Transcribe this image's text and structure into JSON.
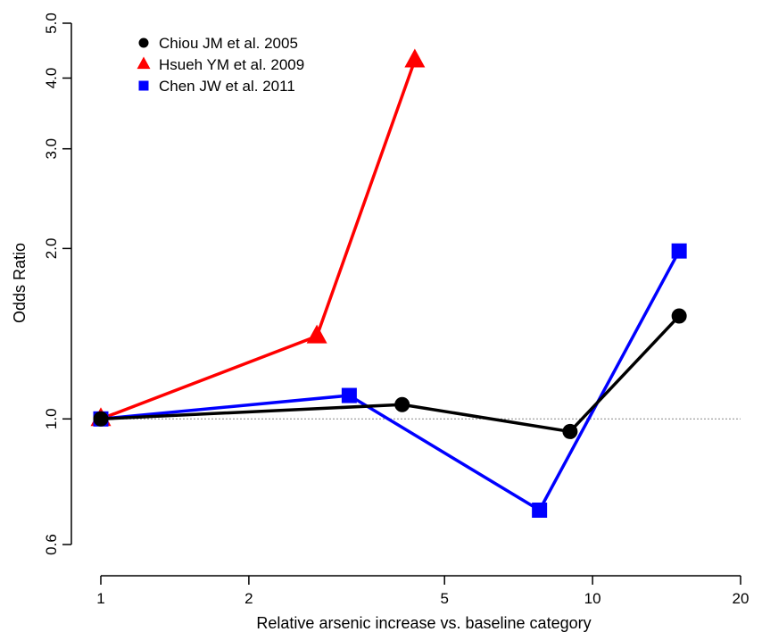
{
  "chart_data": {
    "type": "line",
    "title": "",
    "xlabel": "Relative arsenic increase vs. baseline category",
    "ylabel": "Odds Ratio",
    "x_scale": "log",
    "y_scale": "log",
    "xlim": [
      1,
      20
    ],
    "ylim": [
      0.6,
      5.0
    ],
    "x_ticks": [
      1,
      2,
      5,
      10,
      20
    ],
    "x_tick_labels": [
      "1",
      "2",
      "5",
      "10",
      "20"
    ],
    "y_ticks": [
      0.6,
      1.0,
      2.0,
      3.0,
      4.0,
      5.0
    ],
    "y_tick_labels": [
      "0.6",
      "1.0",
      "2.0",
      "3.0",
      "4.0",
      "5.0"
    ],
    "reference_line": 1.0,
    "grid": false,
    "legend_position": "top-left",
    "series": [
      {
        "name": "Chiou JM et al. 2005",
        "marker": "circle",
        "color": "#000000",
        "x": [
          1.0,
          4.1,
          9.0,
          15.0
        ],
        "y": [
          1.0,
          1.06,
          0.95,
          1.52
        ]
      },
      {
        "name": "Hsueh YM et al. 2009",
        "marker": "triangle",
        "color": "#ff0000",
        "x": [
          1.0,
          2.75,
          4.35
        ],
        "y": [
          1.0,
          1.4,
          4.3
        ]
      },
      {
        "name": "Chen JW et al. 2011",
        "marker": "square",
        "color": "#0000ff",
        "x": [
          1.0,
          3.2,
          7.8,
          15.0
        ],
        "y": [
          1.0,
          1.1,
          0.69,
          1.98
        ]
      }
    ]
  }
}
